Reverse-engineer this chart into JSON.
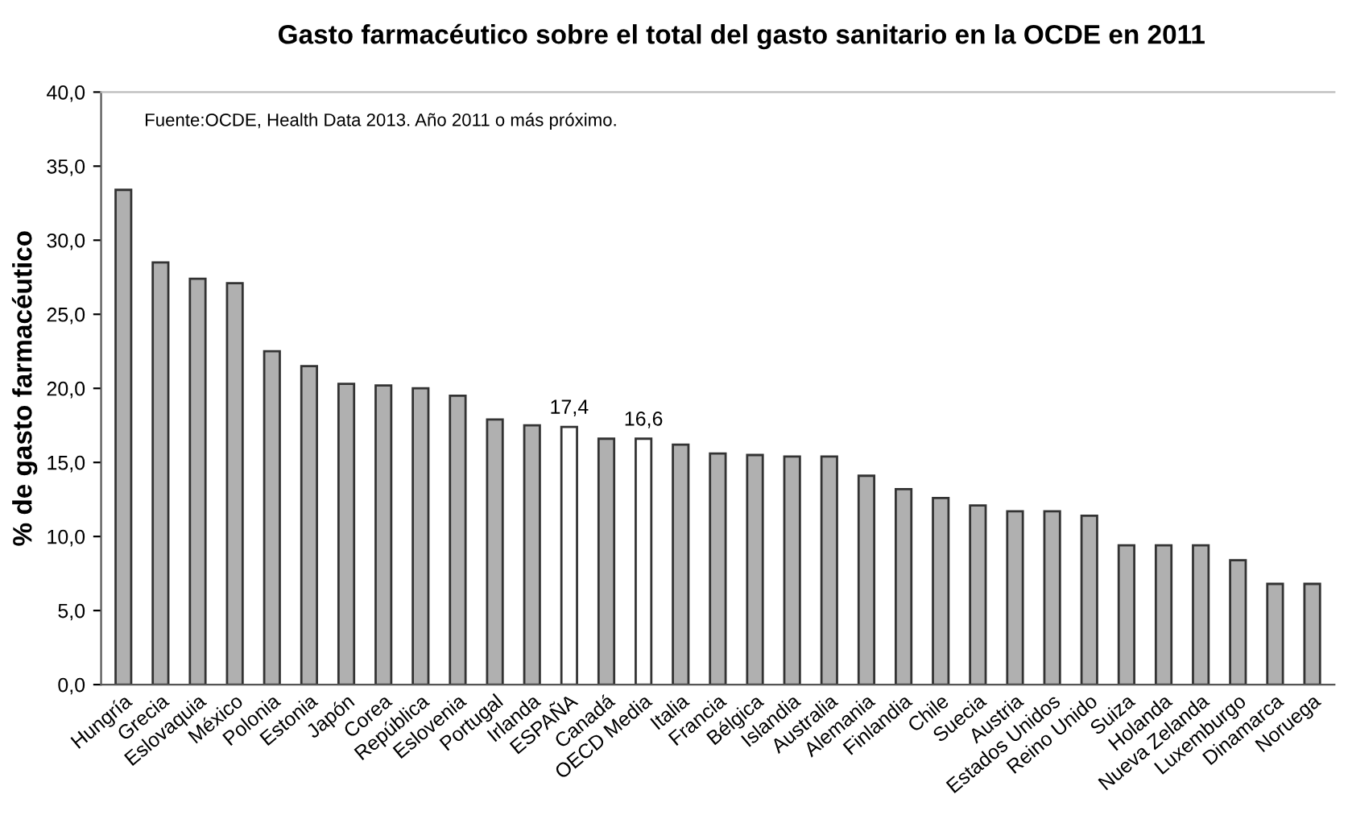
{
  "chart_data": {
    "type": "bar",
    "title": "Gasto farmacéutico sobre el total del gasto sanitario en la OCDE en 2011",
    "ylabel": "% de gasto farmacéutico",
    "annotations": [
      "Fuente:OCDE, Health Data 2013. Año 2011 o más próximo."
    ],
    "categories": [
      "Hungría",
      "Grecia",
      "Eslovaquia",
      "México",
      "Polonia",
      "Estonia",
      "Japón",
      "Corea",
      "República",
      "Eslovenia",
      "Portugal",
      "Irlanda",
      "ESPAÑA",
      "Canadá",
      "OECD Media",
      "Italia",
      "Francia",
      "Bélgica",
      "Islandia",
      "Australia",
      "Alemania",
      "Finlandia",
      "Chile",
      "Suecia",
      "Austria",
      "Estados Unidos",
      "Reino Unido",
      "Suiza",
      "Holanda",
      "Nueva Zelanda",
      "Luxemburgo",
      "Dinamarca",
      "Noruega"
    ],
    "values": [
      33.4,
      28.5,
      27.4,
      27.1,
      22.5,
      21.5,
      20.3,
      20.2,
      20.0,
      19.5,
      17.9,
      17.5,
      17.4,
      16.6,
      16.6,
      16.2,
      15.6,
      15.5,
      15.4,
      15.4,
      14.1,
      13.2,
      12.6,
      12.1,
      11.7,
      11.7,
      11.4,
      9.4,
      9.4,
      9.4,
      8.4,
      6.8,
      6.8
    ],
    "colors": [
      "#b0b0b0",
      "#b0b0b0",
      "#b0b0b0",
      "#b0b0b0",
      "#b0b0b0",
      "#b0b0b0",
      "#b0b0b0",
      "#b0b0b0",
      "#b0b0b0",
      "#b0b0b0",
      "#b0b0b0",
      "#b0b0b0",
      "#ffffff",
      "#b0b0b0",
      "#ffffff",
      "#b0b0b0",
      "#b0b0b0",
      "#b0b0b0",
      "#b0b0b0",
      "#b0b0b0",
      "#b0b0b0",
      "#b0b0b0",
      "#b0b0b0",
      "#b0b0b0",
      "#b0b0b0",
      "#b0b0b0",
      "#b0b0b0",
      "#b0b0b0",
      "#b0b0b0",
      "#b0b0b0",
      "#b0b0b0",
      "#b0b0b0",
      "#b0b0b0"
    ],
    "value_labels": [
      null,
      null,
      null,
      null,
      null,
      null,
      null,
      null,
      null,
      null,
      null,
      null,
      "17,4",
      null,
      "16,6",
      null,
      null,
      null,
      null,
      null,
      null,
      null,
      null,
      null,
      null,
      null,
      null,
      null,
      null,
      null,
      null,
      null,
      null
    ],
    "ylim": [
      0,
      40
    ],
    "yticks": [
      {
        "value": 0,
        "label": "0,0"
      },
      {
        "value": 5,
        "label": "5,0"
      },
      {
        "value": 10,
        "label": "10,0"
      },
      {
        "value": 15,
        "label": "15,0"
      },
      {
        "value": 20,
        "label": "20,0"
      },
      {
        "value": 25,
        "label": "25,0"
      },
      {
        "value": 30,
        "label": "30,0"
      },
      {
        "value": 35,
        "label": "35,0"
      },
      {
        "value": 40,
        "label": "40,0"
      }
    ],
    "grid": false
  }
}
